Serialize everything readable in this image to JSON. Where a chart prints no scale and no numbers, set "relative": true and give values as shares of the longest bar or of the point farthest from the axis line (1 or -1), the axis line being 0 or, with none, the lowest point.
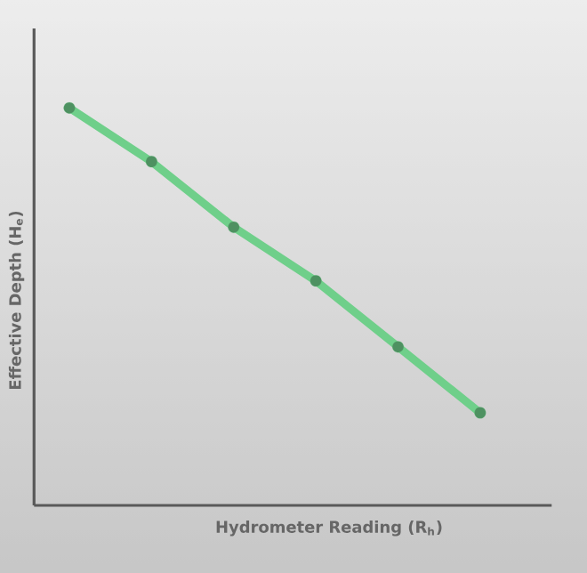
{
  "chart_data": {
    "type": "line",
    "relative": true,
    "marker": "circle",
    "xlabel": "Hydrometer Reading (R$_{h}$)",
    "ylabel": "Effective Depth (H$_{e}$)",
    "categories": [
      null,
      null,
      null,
      null,
      null,
      null
    ],
    "series": [
      {
        "color": "#6fcf8a",
        "values": [
          1,
          0.865,
          0.7,
          0.565,
          0.399,
          0.233
        ]
      }
    ]
  }
}
